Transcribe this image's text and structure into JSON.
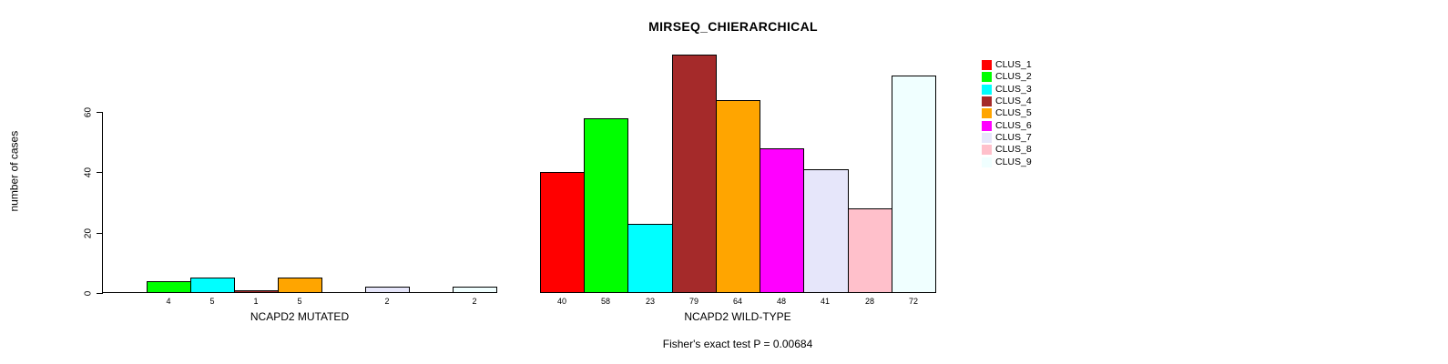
{
  "chart_data": {
    "type": "bar",
    "title": "MIRSEQ_CHIERARCHICAL",
    "ylabel": "number of cases",
    "xlabel": "",
    "yticks": [
      0,
      20,
      40,
      60
    ],
    "ylim": [
      0,
      80
    ],
    "grid": false,
    "legend_position": "right",
    "categories": [
      "CLUS_1",
      "CLUS_2",
      "CLUS_3",
      "CLUS_4",
      "CLUS_5",
      "CLUS_6",
      "CLUS_7",
      "CLUS_8",
      "CLUS_9"
    ],
    "colors": [
      "#FF0000",
      "#00FF00",
      "#00FFFF",
      "#A52A2A",
      "#FFA500",
      "#FF00FF",
      "#E6E6FA",
      "#FFC0CB",
      "#F0FFFF"
    ],
    "groups": [
      {
        "label": "NCAPD2 MUTATED",
        "values": [
          0,
          4,
          5,
          1,
          5,
          0,
          2,
          0,
          2
        ]
      },
      {
        "label": "NCAPD2 WILD-TYPE",
        "values": [
          40,
          58,
          23,
          79,
          64,
          48,
          41,
          28,
          72
        ]
      }
    ],
    "annotation": "Fisher's exact test P = 0.00684"
  },
  "legend": {
    "items": [
      {
        "label": "CLUS_1",
        "color": "#FF0000"
      },
      {
        "label": "CLUS_2",
        "color": "#00FF00"
      },
      {
        "label": "CLUS_3",
        "color": "#00FFFF"
      },
      {
        "label": "CLUS_4",
        "color": "#A52A2A"
      },
      {
        "label": "CLUS_5",
        "color": "#FFA500"
      },
      {
        "label": "CLUS_6",
        "color": "#FF00FF"
      },
      {
        "label": "CLUS_7",
        "color": "#E6E6FA"
      },
      {
        "label": "CLUS_8",
        "color": "#FFC0CB"
      },
      {
        "label": "CLUS_9",
        "color": "#F0FFFF"
      }
    ]
  }
}
